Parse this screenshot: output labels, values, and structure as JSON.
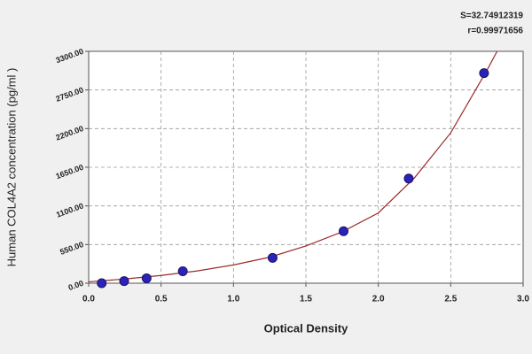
{
  "chart_data": {
    "type": "scatter",
    "annotations": [
      "S=32.74912319",
      "r=0.99971656"
    ],
    "x_label": "Optical Density",
    "y_label": "Human COL4A2 concentration (pg/ml )",
    "xlim": [
      0,
      3
    ],
    "ylim": [
      0,
      3300
    ],
    "xticks": [
      {
        "value": 0,
        "label": "0.0"
      },
      {
        "value": 0.5,
        "label": "0.5"
      },
      {
        "value": 1,
        "label": "1.0"
      },
      {
        "value": 1.5,
        "label": "1.5"
      },
      {
        "value": 2,
        "label": "2.0"
      },
      {
        "value": 2.5,
        "label": "2.5"
      },
      {
        "value": 3,
        "label": "3.0"
      }
    ],
    "yticks": [
      {
        "value": 0,
        "label": "0.00"
      },
      {
        "value": 550,
        "label": "550.00"
      },
      {
        "value": 1100,
        "label": "1100.00"
      },
      {
        "value": 1650,
        "label": "1650.00"
      },
      {
        "value": 2200,
        "label": "2200.00"
      },
      {
        "value": 2750,
        "label": "2750.00"
      },
      {
        "value": 3300,
        "label": "3300.00"
      }
    ],
    "grid": true,
    "series": [
      {
        "color": "#2b22b8",
        "mode": "markers",
        "x": [
          0.09,
          0.245,
          0.4,
          0.65,
          1.27,
          1.76,
          2.21,
          2.73
        ],
        "values": [
          0,
          30,
          70,
          170,
          360,
          740,
          1490,
          2990
        ]
      },
      {
        "color": "#9b2a2a",
        "mode": "line",
        "x": [
          0,
          0.25,
          0.5,
          0.75,
          1,
          1.25,
          1.5,
          1.75,
          2,
          2.25,
          2.5,
          2.75,
          2.82
        ],
        "values": [
          20,
          60,
          110,
          175,
          260,
          370,
          530,
          730,
          1000,
          1500,
          2140,
          3030,
          3300
        ]
      }
    ]
  }
}
